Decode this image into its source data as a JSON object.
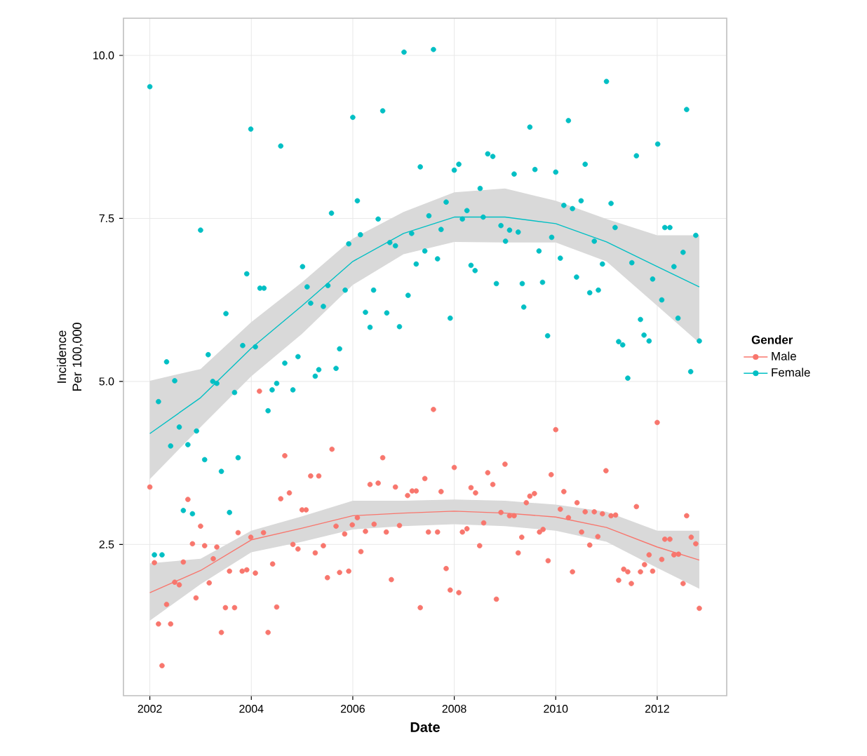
{
  "chart_data": {
    "type": "scatter",
    "xlabel": "Date",
    "ylabel": "Incidence Per 100,000",
    "legend_title": "Gender",
    "xlim": [
      2001.48,
      2013.37
    ],
    "ylim": [
      0.18,
      10.57
    ],
    "xticks": [
      2002,
      2004,
      2006,
      2008,
      2010,
      2012
    ],
    "yticks": [
      2.5,
      {
        "value": 5,
        "label": "5.0"
      },
      7.5,
      {
        "value": 10,
        "label": "10.0"
      }
    ],
    "grid": true,
    "legend": "right",
    "series": [
      {
        "name": "Male",
        "marker": "circle",
        "color": "#f8766d",
        "x": [
          2004.16,
          2002.0,
          2004.66,
          2004.58,
          2004.75,
          2002.75,
          2003.0,
          2002.84,
          2003.08,
          2003.32,
          2003.74,
          2003.99,
          2004.24,
          2002.09,
          2002.66,
          2003.25,
          2004.42,
          2003.57,
          2003.82,
          2003.91,
          2004.08,
          2002.49,
          2002.58,
          2003.17,
          2002.91,
          2002.33,
          2003.49,
          2003.67,
          2004.5,
          2002.17,
          2002.41,
          2003.41,
          2004.33,
          2002.24,
          2004.82,
          2007.59,
          2005.59,
          2006.59,
          2005.17,
          2005.33,
          2006.34,
          2006.5,
          2006.84,
          2007.42,
          2008.0,
          2008.66,
          2009.0,
          2008.76,
          2008.33,
          2008.42,
          2007.74,
          2007.08,
          2007.17,
          2007.25,
          2005.0,
          2005.08,
          2008.92,
          2009.09,
          2009.18,
          2006.09,
          2005.99,
          2005.67,
          2006.42,
          2006.92,
          2008.58,
          2005.84,
          2006.25,
          2006.66,
          2007.49,
          2007.67,
          2008.16,
          2008.25,
          2004.92,
          2005.42,
          2008.5,
          2009.33,
          2005.26,
          2006.16,
          2009.26,
          2007.84,
          2005.5,
          2005.74,
          2005.92,
          2006.76,
          2007.92,
          2008.09,
          2008.83,
          2007.33,
          2010.0,
          2012.0,
          2010.99,
          2009.91,
          2010.16,
          2009.42,
          2009.49,
          2009.58,
          2010.42,
          2011.59,
          2010.09,
          2010.58,
          2010.76,
          2010.92,
          2011.09,
          2011.18,
          2010.25,
          2012.58,
          2009.68,
          2009.75,
          2010.51,
          2010.83,
          2012.15,
          2012.25,
          2012.67,
          2012.76,
          2010.67,
          2011.84,
          2012.33,
          2012.42,
          2012.09,
          2009.85,
          2010.33,
          2011.34,
          2011.42,
          2011.67,
          2011.75,
          2011.91,
          2011.24,
          2011.49,
          2012.51,
          2012.83
        ],
        "values": [
          4.85,
          3.38,
          3.86,
          3.2,
          3.29,
          3.19,
          2.78,
          2.51,
          2.48,
          2.46,
          2.68,
          2.61,
          2.68,
          2.22,
          2.23,
          2.28,
          2.2,
          2.09,
          2.09,
          2.11,
          2.06,
          1.92,
          1.88,
          1.91,
          1.68,
          1.58,
          1.53,
          1.53,
          1.54,
          1.28,
          1.28,
          1.15,
          1.15,
          0.64,
          2.5,
          4.57,
          3.96,
          3.83,
          3.55,
          3.55,
          3.42,
          3.44,
          3.38,
          3.51,
          3.68,
          3.6,
          3.73,
          3.42,
          3.37,
          3.29,
          3.31,
          3.25,
          3.32,
          3.32,
          3.03,
          3.03,
          2.99,
          2.94,
          2.94,
          2.91,
          2.8,
          2.78,
          2.81,
          2.79,
          2.83,
          2.66,
          2.7,
          2.69,
          2.69,
          2.69,
          2.69,
          2.74,
          2.43,
          2.48,
          2.48,
          2.61,
          2.37,
          2.39,
          2.37,
          2.13,
          1.99,
          2.07,
          2.09,
          1.96,
          1.8,
          1.76,
          1.66,
          1.53,
          4.26,
          4.37,
          3.63,
          3.57,
          3.31,
          3.14,
          3.24,
          3.28,
          3.14,
          3.08,
          3.04,
          3.0,
          3.0,
          2.97,
          2.94,
          2.95,
          2.91,
          2.94,
          2.69,
          2.73,
          2.69,
          2.62,
          2.58,
          2.58,
          2.61,
          2.51,
          2.49,
          2.34,
          2.34,
          2.35,
          2.27,
          2.25,
          2.08,
          2.12,
          2.08,
          2.08,
          2.19,
          2.09,
          1.95,
          1.9,
          1.9,
          1.52
        ]
      },
      {
        "name": "Female",
        "marker": "circle",
        "color": "#00bfc4",
        "x": [
          2002.0,
          2003.0,
          2003.99,
          2004.58,
          2003.91,
          2004.17,
          2004.25,
          2003.5,
          2003.83,
          2004.08,
          2003.15,
          2002.33,
          2002.49,
          2003.24,
          2003.32,
          2003.67,
          2004.66,
          2004.5,
          2004.41,
          2004.82,
          2002.17,
          2002.58,
          2002.92,
          2002.41,
          2002.75,
          2003.08,
          2003.41,
          2003.74,
          2002.66,
          2002.84,
          2003.57,
          2002.09,
          2002.24,
          2004.33,
          2007.01,
          2007.59,
          2006.0,
          2006.59,
          2008.66,
          2008.76,
          2009.18,
          2008.09,
          2008.0,
          2007.33,
          2008.51,
          2007.84,
          2005.58,
          2006.09,
          2006.5,
          2007.5,
          2008.25,
          2008.16,
          2008.57,
          2007.74,
          2007.16,
          2008.92,
          2009.09,
          2009.26,
          2009.01,
          2009.34,
          2008.83,
          2008.33,
          2008.41,
          2007.67,
          2007.42,
          2007.25,
          2006.73,
          2006.84,
          2006.15,
          2005.92,
          2005.01,
          2005.1,
          2005.51,
          2005.85,
          2005.17,
          2005.42,
          2006.41,
          2007.09,
          2006.25,
          2006.67,
          2006.34,
          2006.92,
          2007.92,
          2009.37,
          2004.92,
          2005.74,
          2005.33,
          2005.67,
          2005.26,
          2011.0,
          2012.58,
          2009.49,
          2010.25,
          2012.01,
          2011.59,
          2009.59,
          2010.0,
          2010.58,
          2010.5,
          2010.16,
          2010.33,
          2011.09,
          2009.92,
          2009.67,
          2010.09,
          2010.76,
          2011.17,
          2010.92,
          2011.5,
          2012.15,
          2012.25,
          2012.76,
          2012.51,
          2012.33,
          2011.91,
          2010.41,
          2009.74,
          2010.67,
          2010.84,
          2012.09,
          2011.67,
          2012.41,
          2009.84,
          2011.24,
          2011.32,
          2011.74,
          2011.84,
          2012.83,
          2011.42,
          2012.66
        ],
        "values": [
          9.52,
          7.32,
          8.87,
          8.61,
          6.65,
          6.43,
          6.43,
          6.04,
          5.55,
          5.53,
          5.41,
          5.3,
          5.01,
          5.0,
          4.97,
          4.83,
          5.28,
          4.97,
          4.87,
          4.87,
          4.69,
          4.3,
          4.24,
          4.01,
          4.03,
          3.8,
          3.62,
          3.83,
          3.02,
          2.97,
          2.99,
          2.34,
          2.34,
          4.55,
          10.05,
          10.09,
          9.05,
          9.15,
          8.49,
          8.45,
          8.18,
          8.33,
          8.24,
          8.29,
          7.96,
          7.75,
          7.58,
          7.77,
          7.49,
          7.54,
          7.62,
          7.49,
          7.52,
          7.33,
          7.27,
          7.39,
          7.32,
          7.29,
          7.15,
          6.5,
          6.5,
          6.78,
          6.7,
          6.88,
          7.0,
          6.8,
          7.13,
          7.08,
          7.25,
          7.11,
          6.76,
          6.45,
          6.47,
          6.4,
          6.2,
          6.15,
          6.4,
          6.32,
          6.06,
          6.05,
          5.83,
          5.84,
          5.97,
          6.14,
          5.38,
          5.5,
          5.18,
          5.2,
          5.08,
          9.6,
          9.17,
          8.9,
          9.0,
          8.64,
          8.46,
          8.25,
          8.21,
          8.33,
          7.77,
          7.7,
          7.65,
          7.73,
          7.21,
          7.0,
          6.89,
          7.15,
          7.36,
          6.8,
          6.82,
          7.36,
          7.36,
          7.24,
          6.98,
          6.76,
          6.57,
          6.6,
          6.52,
          6.36,
          6.4,
          6.25,
          5.95,
          5.97,
          5.7,
          5.61,
          5.56,
          5.71,
          5.62,
          5.62,
          5.05,
          5.15
        ]
      },
      {
        "type": "line",
        "marker": "none",
        "color": "#f8766d",
        "x": [
          2002,
          2003,
          2004,
          2005,
          2006,
          2007,
          2008,
          2009,
          2010,
          2011,
          2012,
          2012.83
        ],
        "values": [
          1.76,
          2.1,
          2.57,
          2.75,
          2.94,
          2.98,
          3.01,
          2.98,
          2.92,
          2.76,
          2.46,
          2.26
        ],
        "lower": [
          1.33,
          1.89,
          2.38,
          2.54,
          2.73,
          2.78,
          2.81,
          2.78,
          2.71,
          2.54,
          2.14,
          1.82
        ],
        "upper": [
          2.21,
          2.28,
          2.71,
          2.93,
          3.17,
          3.17,
          3.19,
          3.17,
          3.11,
          3.0,
          2.71,
          2.71
        ]
      },
      {
        "type": "line",
        "marker": "none",
        "color": "#00bfc4",
        "x": [
          2002,
          2003,
          2004,
          2005,
          2006,
          2007,
          2008,
          2009,
          2010,
          2011,
          2012,
          2012.83
        ],
        "values": [
          4.2,
          4.75,
          5.51,
          6.16,
          6.84,
          7.27,
          7.52,
          7.52,
          7.42,
          7.14,
          6.76,
          6.45
        ],
        "lower": [
          3.5,
          4.3,
          5.08,
          5.73,
          6.48,
          6.95,
          7.14,
          7.13,
          7.13,
          6.84,
          6.16,
          5.59
        ],
        "upper": [
          5.01,
          5.19,
          5.91,
          6.52,
          7.19,
          7.6,
          7.9,
          7.96,
          7.77,
          7.49,
          7.24,
          7.24
        ]
      }
    ]
  }
}
